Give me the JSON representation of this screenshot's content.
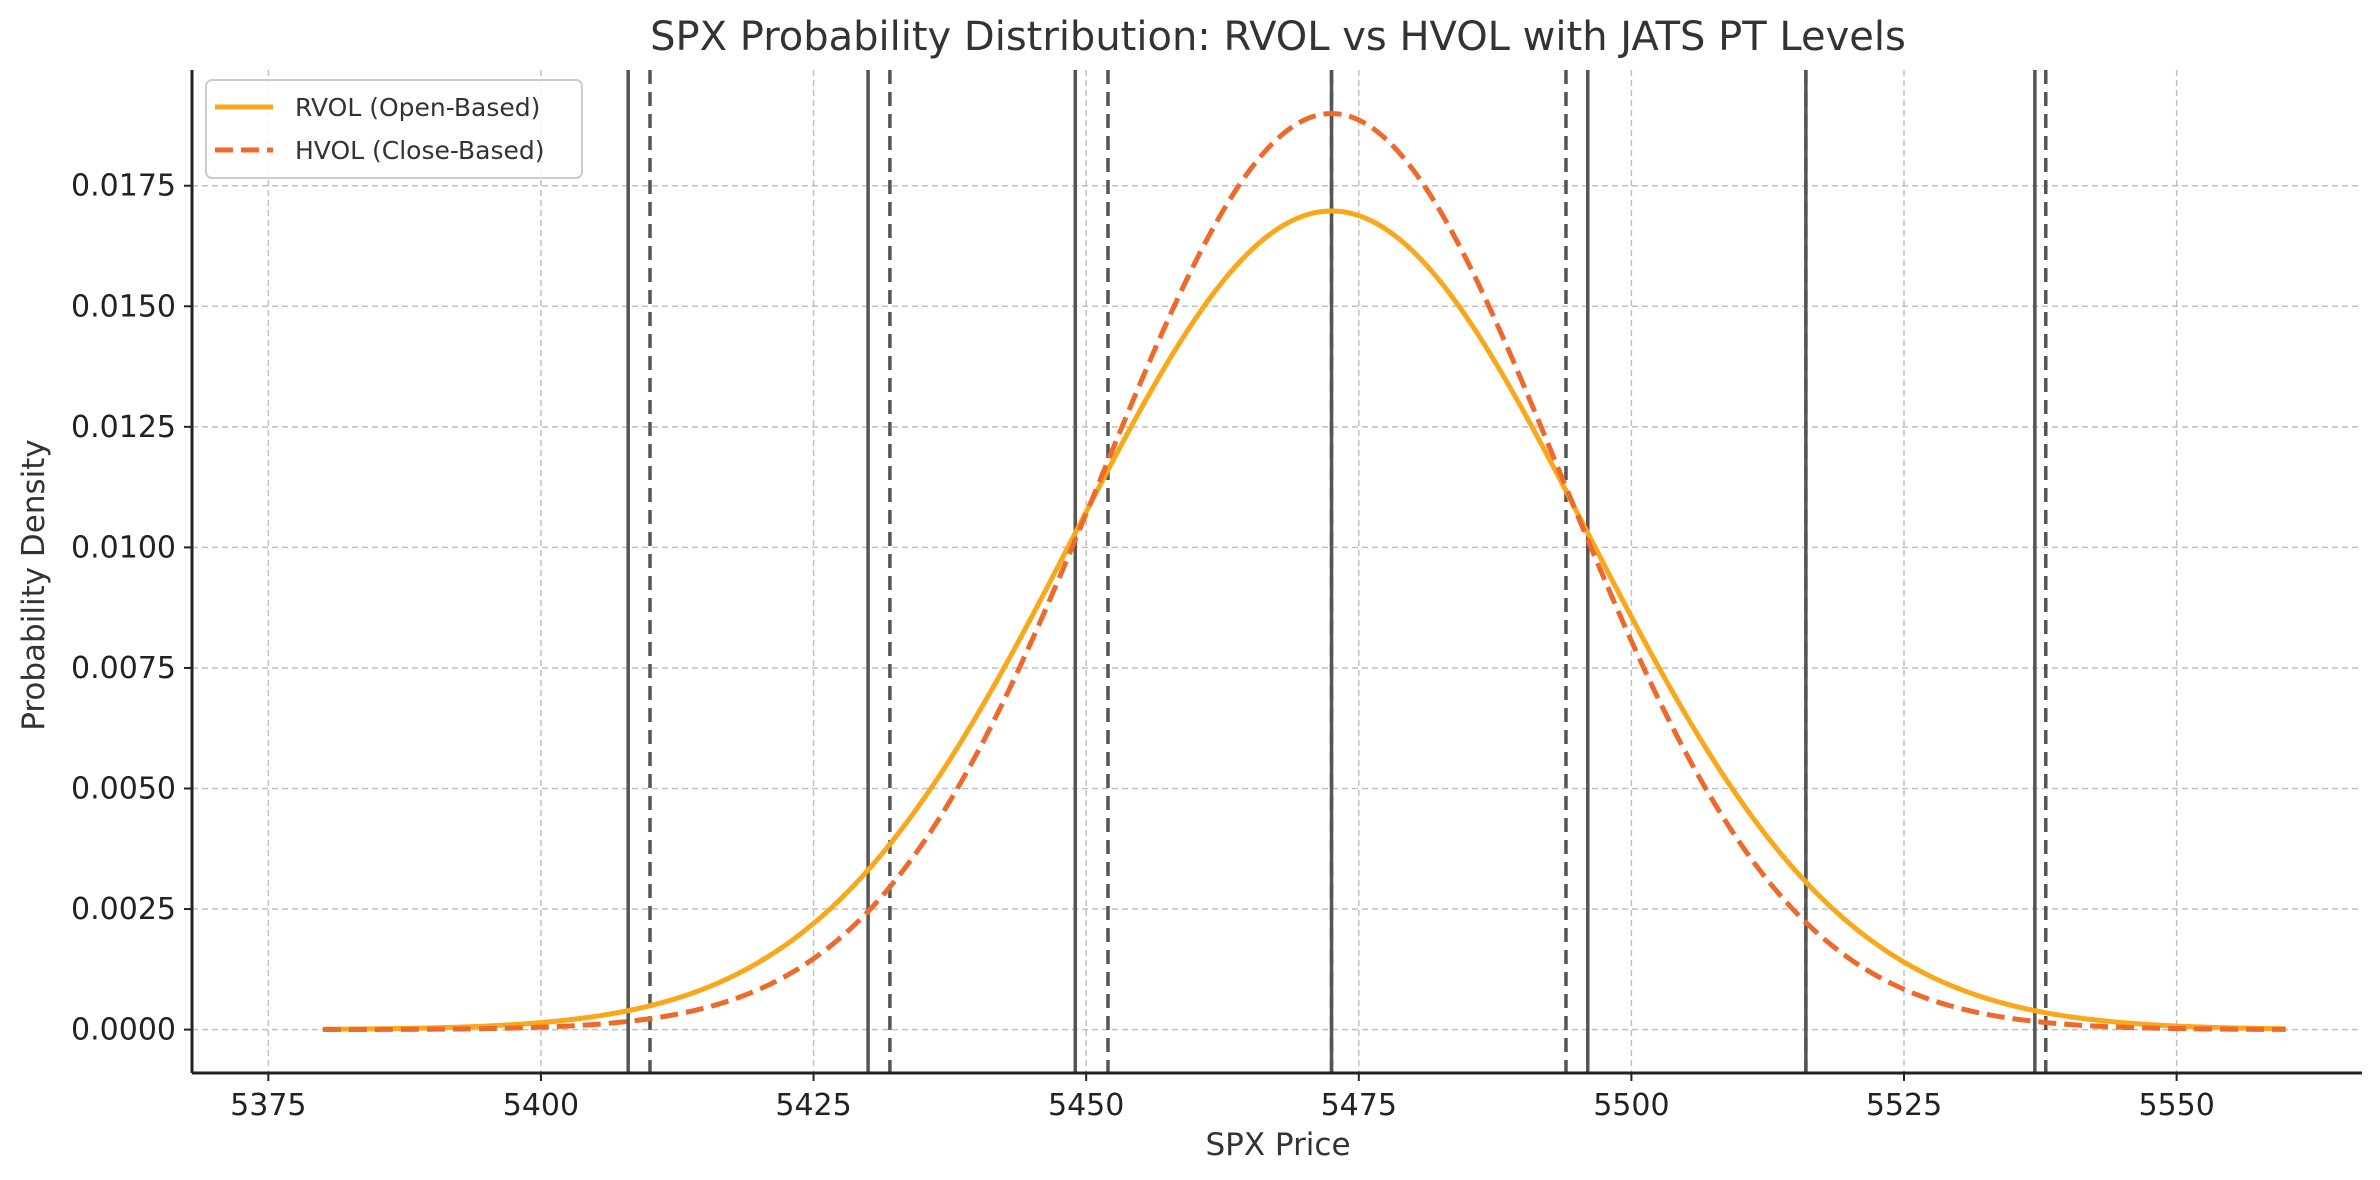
{
  "chart_data": {
    "type": "line",
    "title": "SPX Probability Distribution: RVOL vs HVOL with JATS PT Levels",
    "xlabel": "SPX Price",
    "ylabel": "Probability Density",
    "xlim": [
      5368,
      5567
    ],
    "ylim": [
      -0.0009,
      0.0199
    ],
    "x_ticks": [
      5375,
      5400,
      5425,
      5450,
      5475,
      5500,
      5525,
      5550
    ],
    "x_tick_labels": [
      "5375",
      "5400",
      "5425",
      "5450",
      "5475",
      "5500",
      "5525",
      "5550"
    ],
    "y_ticks": [
      0,
      0.0025,
      0.005,
      0.0075,
      0.01,
      0.0125,
      0.015,
      0.0175
    ],
    "y_tick_labels": [
      "0.0000",
      "0.0025",
      "0.0050",
      "0.0075",
      "0.0100",
      "0.0125",
      "0.0150",
      "0.0175"
    ],
    "grid": true,
    "legend_position": "top-left",
    "series": [
      {
        "name": "RVOL (Open-Based)",
        "style": "solid",
        "color": "#f9a81b",
        "mean": 5472.5,
        "std_dev": 23.5,
        "x_range": [
          5380,
          5560
        ],
        "peak_density": 0.017
      },
      {
        "name": "HVOL (Close-Based)",
        "style": "dashed",
        "color": "#ee6a2c",
        "mean": 5472.5,
        "std_dev": 21.0,
        "x_range": [
          5380,
          5560
        ],
        "peak_density": 0.019
      }
    ],
    "pt_levels_solid": [
      5408,
      5430,
      5449,
      5472.5,
      5496,
      5516,
      5537
    ],
    "pt_levels_dashed": [
      5410,
      5432,
      5452,
      5472.5,
      5494,
      5516,
      5538
    ],
    "level_line_color": "#555555"
  }
}
